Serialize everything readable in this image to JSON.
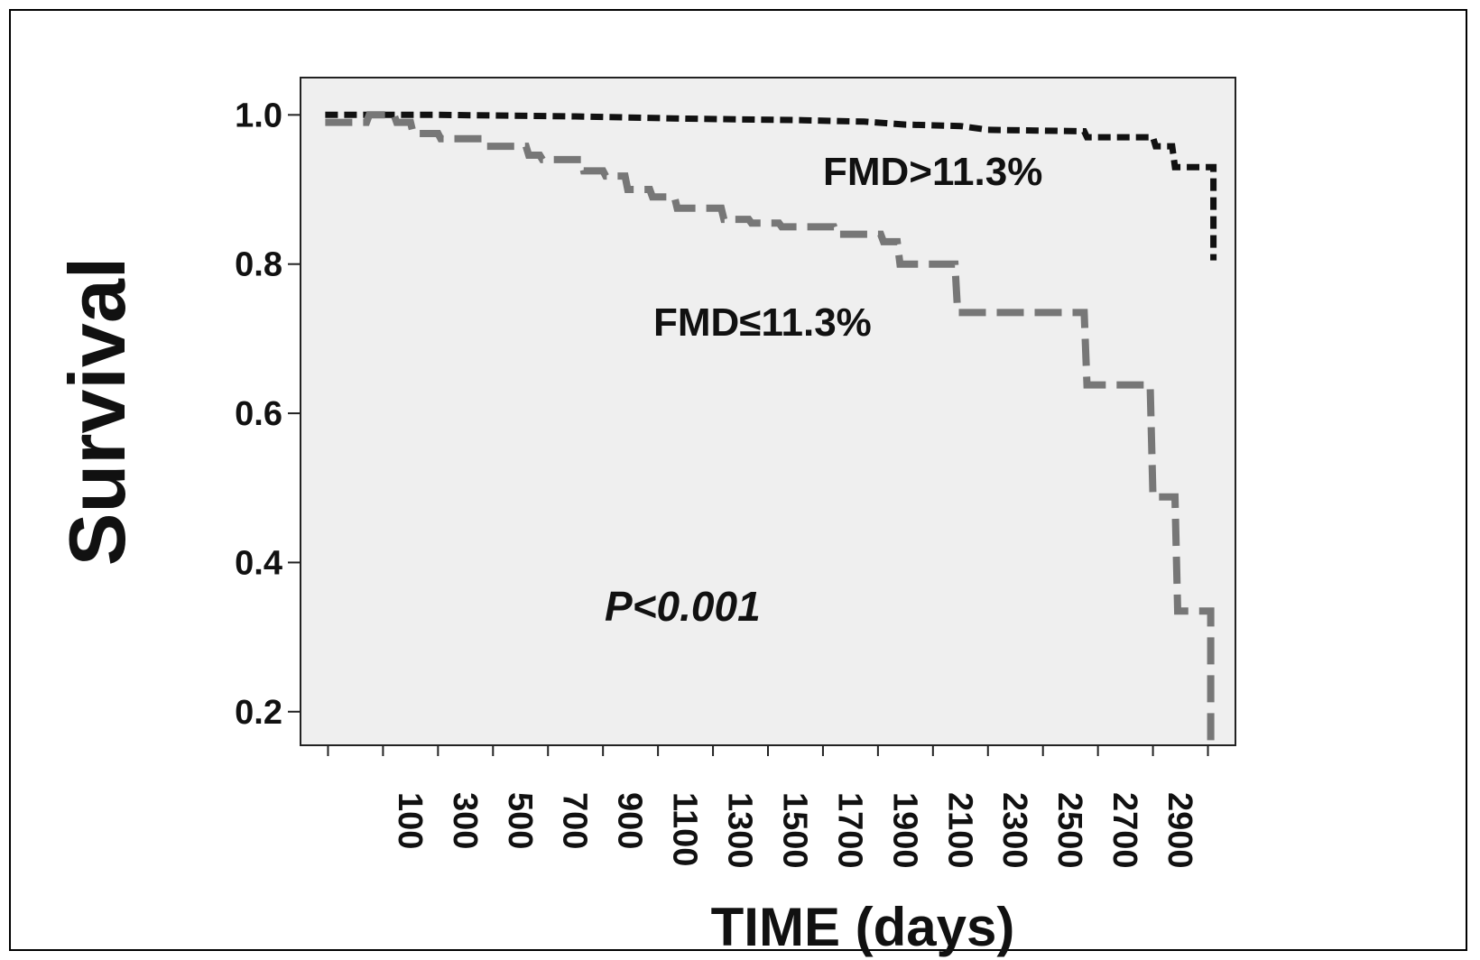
{
  "chart_data": {
    "type": "line",
    "step": true,
    "xlabel": "TIME (days)",
    "ylabel": "Survival",
    "xlim": [
      -300,
      3100
    ],
    "ylim": [
      0.155,
      1.05
    ],
    "x_ticks": [
      100,
      300,
      500,
      700,
      900,
      1100,
      1300,
      1500,
      1700,
      1900,
      2100,
      2300,
      2500,
      2700,
      2900
    ],
    "y_ticks": [
      0.2,
      0.4,
      0.6,
      0.8,
      1.0
    ],
    "y_tick_labels": [
      "0.2",
      "0.4",
      "0.6",
      "0.8",
      "1.0"
    ],
    "grid": false,
    "background": "#efefef",
    "annotation": "P<0.001",
    "series": [
      {
        "name": "FMD>11.3%",
        "color": "#111111",
        "dash": "short",
        "points": [
          [
            -210,
            1.0
          ],
          [
            200,
            1.0
          ],
          [
            700,
            0.998
          ],
          [
            1100,
            0.995
          ],
          [
            1500,
            0.993
          ],
          [
            1750,
            0.991
          ],
          [
            1900,
            0.987
          ],
          [
            2100,
            0.985
          ],
          [
            2200,
            0.98
          ],
          [
            2550,
            0.978
          ],
          [
            2560,
            0.97
          ],
          [
            2800,
            0.97
          ],
          [
            2810,
            0.958
          ],
          [
            2870,
            0.958
          ],
          [
            2880,
            0.93
          ],
          [
            3020,
            0.93
          ],
          [
            3020,
            0.805
          ]
        ]
      },
      {
        "name": "FMD≤11.3%",
        "color": "#777777",
        "dash": "long",
        "points": [
          [
            -210,
            0.99
          ],
          [
            -60,
            0.99
          ],
          [
            -50,
            1.0
          ],
          [
            40,
            1.0
          ],
          [
            50,
            0.99
          ],
          [
            100,
            0.99
          ],
          [
            110,
            0.975
          ],
          [
            200,
            0.975
          ],
          [
            210,
            0.968
          ],
          [
            360,
            0.968
          ],
          [
            370,
            0.958
          ],
          [
            520,
            0.958
          ],
          [
            530,
            0.946
          ],
          [
            570,
            0.946
          ],
          [
            580,
            0.94
          ],
          [
            720,
            0.94
          ],
          [
            730,
            0.925
          ],
          [
            800,
            0.925
          ],
          [
            810,
            0.918
          ],
          [
            880,
            0.918
          ],
          [
            890,
            0.9
          ],
          [
            970,
            0.9
          ],
          [
            980,
            0.89
          ],
          [
            1060,
            0.89
          ],
          [
            1070,
            0.875
          ],
          [
            1230,
            0.875
          ],
          [
            1240,
            0.86
          ],
          [
            1330,
            0.86
          ],
          [
            1340,
            0.855
          ],
          [
            1440,
            0.855
          ],
          [
            1450,
            0.85
          ],
          [
            1640,
            0.85
          ],
          [
            1650,
            0.84
          ],
          [
            1810,
            0.84
          ],
          [
            1820,
            0.83
          ],
          [
            1870,
            0.83
          ],
          [
            1880,
            0.8
          ],
          [
            2080,
            0.8
          ],
          [
            2090,
            0.735
          ],
          [
            2550,
            0.735
          ],
          [
            2560,
            0.638
          ],
          [
            2790,
            0.638
          ],
          [
            2800,
            0.488
          ],
          [
            2880,
            0.488
          ],
          [
            2890,
            0.335
          ],
          [
            3010,
            0.335
          ],
          [
            3010,
            0.16
          ]
        ]
      }
    ]
  }
}
